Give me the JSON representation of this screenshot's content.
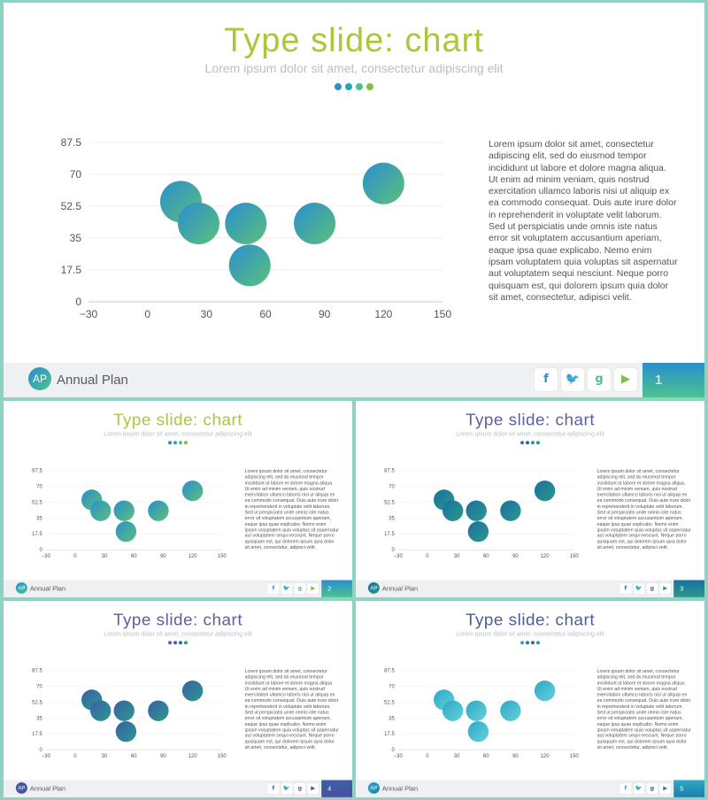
{
  "slides": [
    {
      "title": "Type slide: chart",
      "subtitle": "Lorem ipsum dolor sit amet, consectetur adipiscing elit",
      "body": "Lorem ipsum dolor sit amet, consectetur adipiscing elit, sed do eiusmod tempor incididunt ut labore et dolore magna aliqua. Ut enim ad minim veniam, quis nostrud exercitation ullamco laboris nisi ut aliquip ex ea commodo consequat. Duis aute irure dolor in reprehenderit in voluptate velit laborum. Sed ut perspiciatis unde omnis iste natus error sit voluptatem accusantium aperiam, eaque ipsa quae explicabo. Nemo enim ipsam voluptatem quia voluptas sit aspernatur aut voluptatem sequi nesciunt. Neque porro quisquam est, qui dolorem ipsum quia dolor sit amet, consectetur, adipisci velit.",
      "footer_label": "Annual Plan",
      "logo_text": "AP",
      "page": "1",
      "title_color": "#a8c83a",
      "bubble_from": "#2a8ed0",
      "bubble_to": "#5cc079",
      "page_from": "#2a8ed0",
      "page_to": "#4cc28e",
      "dots": [
        "#2a8ed0",
        "#1fa9b5",
        "#4cc28e",
        "#7dc142"
      ],
      "social": [
        {
          "icon": "facebook-icon",
          "glyph": "f",
          "color": "#2a8ed0"
        },
        {
          "icon": "twitter-icon",
          "glyph": "🐦",
          "color": "#2aa0d8"
        },
        {
          "icon": "google-plus-icon",
          "glyph": "g",
          "color": "#4cc28e"
        },
        {
          "icon": "youtube-icon",
          "glyph": "▶",
          "color": "#7dc142"
        }
      ]
    },
    {
      "title": "Type slide: chart",
      "subtitle": "Lorem ipsum dolor sit amet, consectetur adipiscing elit",
      "body": "Lorem ipsum dolor sit amet, consectetur adipiscing elit, sed do eiusmod tempor incididunt ut labore et dolore magna aliqua. Ut enim ad minim veniam, quis nostrud exercitation ullamco laboris nisi ut aliquip ex ea commodo consequat. Duis aute irure dolor in reprehenderit in voluptate velit laborum. Sed ut perspiciatis unde omnis iste natus error sit voluptatem accusantium aperiam, eaque ipsa quae explicabo. Nemo enim ipsam voluptatem quia voluptas sit aspernatur aut voluptatem sequi nesciunt. Neque porro quisquam est, qui dolorem ipsum quia dolor sit amet, consectetur, adipisci velit.",
      "footer_label": "Annual Plan",
      "logo_text": "AP",
      "page": "2",
      "title_color": "#a8c83a",
      "bubble_from": "#2a8ed0",
      "bubble_to": "#5cc079",
      "page_from": "#2a8ed0",
      "page_to": "#4cc28e",
      "dots": [
        "#2a8ed0",
        "#1fa9b5",
        "#4cc28e",
        "#7dc142"
      ],
      "social": [
        {
          "icon": "facebook-icon",
          "glyph": "f",
          "color": "#2a8ed0"
        },
        {
          "icon": "twitter-icon",
          "glyph": "🐦",
          "color": "#2aa0d8"
        },
        {
          "icon": "google-plus-icon",
          "glyph": "g",
          "color": "#4cc28e"
        },
        {
          "icon": "youtube-icon",
          "glyph": "▶",
          "color": "#7dc142"
        }
      ]
    },
    {
      "title": "Type slide: chart",
      "subtitle": "Lorem ipsum dolor sit amet, consectetur adipiscing elit",
      "body": "Lorem ipsum dolor sit amet, consectetur adipiscing elit, sed do eiusmod tempor incididunt ut labore et dolore magna aliqua. Ut enim ad minim veniam, quis nostrud exercitation ullamco laboris nisi ut aliquip ex ea commodo consequat. Duis aute irure dolor in reprehenderit in voluptate velit laborum. Sed ut perspiciatis unde omnis iste natus error sit voluptatem accusantium aperiam, eaque ipsa quae explicabo. Nemo enim ipsam voluptatem quia voluptas sit aspernatur aut voluptatem sequi nesciunt. Neque porro quisquam est, qui dolorem ipsum quia dolor sit amet, consectetur, adipisci velit.",
      "footer_label": "Annual Plan",
      "logo_text": "AP",
      "page": "3",
      "title_color": "#5b5ea6",
      "bubble_from": "#1a6fa0",
      "bubble_to": "#2a9a8a",
      "page_from": "#1a6fa0",
      "page_to": "#2a9a8a",
      "dots": [
        "#5b5ea6",
        "#1a6fa0",
        "#2a8ed0",
        "#2a9a8a"
      ],
      "social": [
        {
          "icon": "facebook-icon",
          "glyph": "f",
          "color": "#1a6fa0"
        },
        {
          "icon": "twitter-icon",
          "glyph": "🐦",
          "color": "#1a6fa0"
        },
        {
          "icon": "google-plus-icon",
          "glyph": "g",
          "color": "#5b5ea6"
        },
        {
          "icon": "youtube-icon",
          "glyph": "▶",
          "color": "#2a9a8a"
        }
      ]
    },
    {
      "title": "Type slide: chart",
      "subtitle": "Lorem ipsum dolor sit amet, consectetur adipiscing elit",
      "body": "Lorem ipsum dolor sit amet, consectetur adipiscing elit, sed do eiusmod tempor incididunt ut labore et dolore magna aliqua. Ut enim ad minim veniam, quis nostrud exercitation ullamco laboris nisi ut aliquip ex ea commodo consequat. Duis aute irure dolor in reprehenderit in voluptate velit laborum. Sed ut perspiciatis unde omnis iste natus error sit voluptatem accusantium aperiam, eaque ipsa quae explicabo. Nemo enim ipsam voluptatem quia voluptas sit aspernatur aut voluptatem sequi nesciunt. Neque porro quisquam est, qui dolorem ipsum quia dolor sit amet, consectetur, adipisci velit.",
      "footer_label": "Annual Plan",
      "logo_text": "AP",
      "page": "4",
      "title_color": "#5b5ea6",
      "bubble_from": "#3a5fa8",
      "bubble_to": "#2a9a8a",
      "page_from": "#3a5fa8",
      "page_to": "#4a4e9e",
      "dots": [
        "#5b5ea6",
        "#3a5fa8",
        "#1a6fa0",
        "#2a9a8a"
      ],
      "social": [
        {
          "icon": "facebook-icon",
          "glyph": "f",
          "color": "#3a5fa8"
        },
        {
          "icon": "twitter-icon",
          "glyph": "🐦",
          "color": "#3a5fa8"
        },
        {
          "icon": "google-plus-icon",
          "glyph": "g",
          "color": "#5b5ea6"
        },
        {
          "icon": "youtube-icon",
          "glyph": "▶",
          "color": "#4a4e9e"
        }
      ]
    },
    {
      "title": "Type slide: chart",
      "subtitle": "Lorem ipsum dolor sit amet, consectetur adipiscing elit",
      "body": "Lorem ipsum dolor sit amet, consectetur adipiscing elit, sed do eiusmod tempor incididunt ut labore et dolore magna aliqua. Ut enim ad minim veniam, quis nostrud exercitation ullamco laboris nisi ut aliquip ex ea commodo consequat. Duis aute irure dolor in reprehenderit in voluptate velit laborum. Sed ut perspiciatis unde omnis iste natus error sit voluptatem accusantium aperiam, eaque ipsa quae explicabo. Nemo enim ipsam voluptatem quia voluptas sit aspernatur aut voluptatem sequi nesciunt. Neque porro quisquam est, qui dolorem ipsum quia dolor sit amet, consectetur, adipisci velit.",
      "footer_label": "Annual Plan",
      "logo_text": "AP",
      "page": "5",
      "title_color": "#4a5ba0",
      "bubble_from": "#2aa8c8",
      "bubble_to": "#6ad0d8",
      "page_from": "#2aa8c8",
      "page_to": "#1e7fa8",
      "dots": [
        "#2aa8c8",
        "#1e7fa8",
        "#4a5ba0",
        "#2a8ed0"
      ],
      "social": [
        {
          "icon": "facebook-icon",
          "glyph": "f",
          "color": "#2aa8c8"
        },
        {
          "icon": "twitter-icon",
          "glyph": "🐦",
          "color": "#2aa8c8"
        },
        {
          "icon": "google-plus-icon",
          "glyph": "g",
          "color": "#4a5ba0"
        },
        {
          "icon": "youtube-icon",
          "glyph": "▶",
          "color": "#1e7fa8"
        }
      ]
    }
  ],
  "chart_data": {
    "type": "scatter",
    "x": [
      17,
      26,
      50,
      52,
      85,
      120
    ],
    "y": [
      55,
      43,
      43,
      20,
      43,
      65
    ],
    "xlim": [
      -30,
      150
    ],
    "ylim": [
      0,
      87.5
    ],
    "x_ticks": [
      "−30",
      "0",
      "30",
      "60",
      "90",
      "120",
      "150"
    ],
    "y_ticks": [
      "0",
      "17.5",
      "35",
      "52.5",
      "70",
      "87.5"
    ],
    "grid": true
  }
}
